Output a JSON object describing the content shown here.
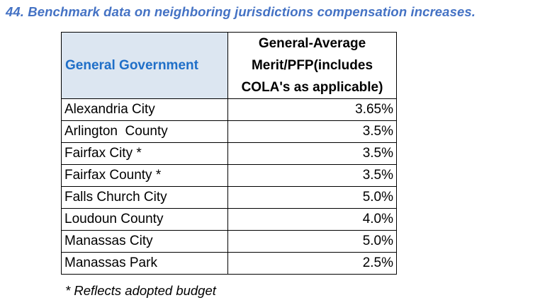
{
  "heading": "44. Benchmark data on neighboring jurisdictions compensation increases.",
  "table": {
    "col1_header": "General Government",
    "col2_header_lines": [
      "General-Average",
      "Merit/PFP(includes",
      "COLA's as applicable)"
    ],
    "rows": [
      {
        "jurisdiction": "Alexandria City",
        "rate": "3.65%"
      },
      {
        "jurisdiction": "Arlington  County",
        "rate": "3.5%"
      },
      {
        "jurisdiction": "Fairfax City *",
        "rate": "3.5%"
      },
      {
        "jurisdiction": "Fairfax County *",
        "rate": "3.5%"
      },
      {
        "jurisdiction": "Falls Church City",
        "rate": "5.0%"
      },
      {
        "jurisdiction": "Loudoun County",
        "rate": "4.0%"
      },
      {
        "jurisdiction": "Manassas City",
        "rate": "5.0%"
      },
      {
        "jurisdiction": "Manassas Park",
        "rate": "2.5%"
      }
    ]
  },
  "footnote": "* Reflects adopted budget",
  "colors": {
    "heading": "#4472C4",
    "header_fill": "#DCE6F1",
    "header_text": "#1F6FC8"
  }
}
